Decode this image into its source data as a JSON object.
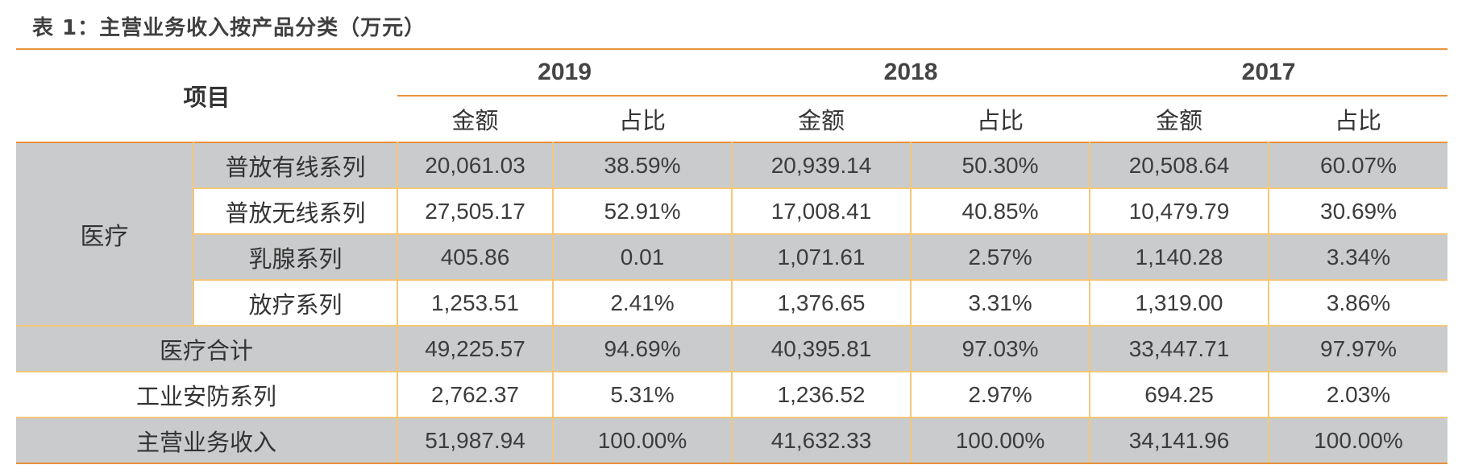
{
  "caption": "表 1：主营业务收入按产品分类（万元）",
  "header": {
    "item_label": "项目",
    "years": [
      "2019",
      "2018",
      "2017"
    ],
    "sub_amount": "金额",
    "sub_ratio": "占比"
  },
  "group_label": "医疗",
  "rows": [
    {
      "label": "普放有线系列",
      "values": [
        "20,061.03",
        "38.59%",
        "20,939.14",
        "50.30%",
        "20,508.64",
        "60.07%"
      ]
    },
    {
      "label": "普放无线系列",
      "values": [
        "27,505.17",
        "52.91%",
        "17,008.41",
        "40.85%",
        "10,479.79",
        "30.69%"
      ]
    },
    {
      "label": "乳腺系列",
      "values": [
        "405.86",
        "0.01",
        "1,071.61",
        "2.57%",
        "1,140.28",
        "3.34%"
      ]
    },
    {
      "label": "放疗系列",
      "values": [
        "1,253.51",
        "2.41%",
        "1,376.65",
        "3.31%",
        "1,319.00",
        "3.86%"
      ]
    },
    {
      "label": "医疗合计",
      "values": [
        "49,225.57",
        "94.69%",
        "40,395.81",
        "97.03%",
        "33,447.71",
        "97.97%"
      ]
    },
    {
      "label": "工业安防系列",
      "values": [
        "2,762.37",
        "5.31%",
        "1,236.52",
        "2.97%",
        "694.25",
        "2.03%"
      ]
    },
    {
      "label": "主营业务收入",
      "values": [
        "51,987.94",
        "100.00%",
        "41,632.33",
        "100.00%",
        "34,141.96",
        "100.00%"
      ]
    }
  ],
  "colors": {
    "accent_rule": "#e8933a",
    "inner_rule": "#f4c77a",
    "shaded_row": "#cacbcd"
  }
}
